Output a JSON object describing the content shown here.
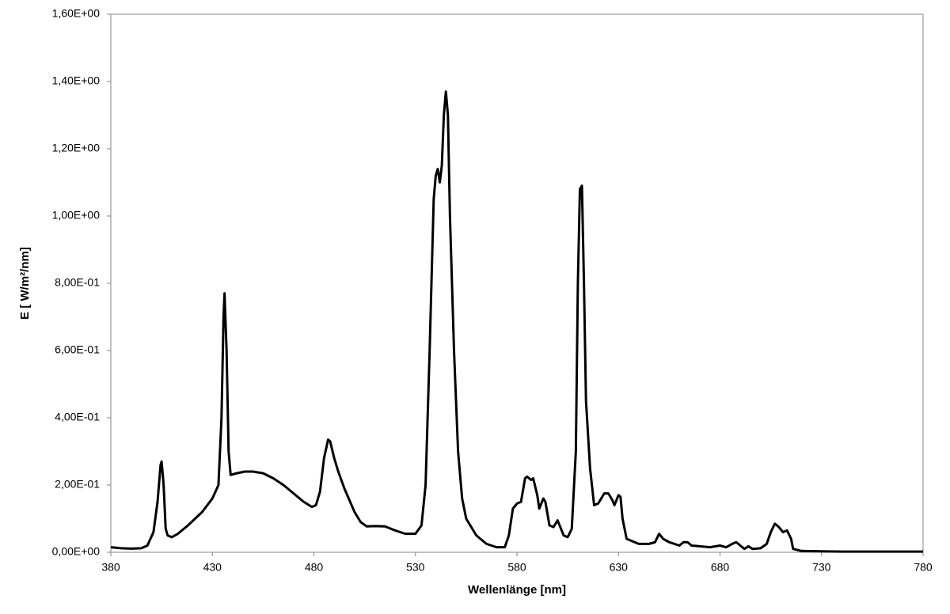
{
  "chart_data": {
    "type": "line",
    "x_label": "Wellenlänge [nm]",
    "y_label": "E [ W/m²/nm]",
    "xlim": [
      380,
      780
    ],
    "xticks": [
      380,
      430,
      480,
      530,
      580,
      630,
      680,
      730,
      780
    ],
    "ylim": [
      0,
      1.6
    ],
    "yticks": [
      {
        "value": 0,
        "label": "0,00E+00"
      },
      {
        "value": 0.2,
        "label": "2,00E-01"
      },
      {
        "value": 0.4,
        "label": "4,00E-01"
      },
      {
        "value": 0.6,
        "label": "6,00E-01"
      },
      {
        "value": 0.8,
        "label": "8,00E-01"
      },
      {
        "value": 1.0,
        "label": "1,00E+00"
      },
      {
        "value": 1.2,
        "label": "1,20E+00"
      },
      {
        "value": 1.4,
        "label": "1,40E+00"
      },
      {
        "value": 1.6,
        "label": "1,60E+00"
      }
    ],
    "grid": false,
    "x": [
      380,
      385,
      390,
      395,
      398,
      401,
      403,
      404.5,
      405,
      406,
      407,
      408,
      410,
      413,
      418,
      425,
      430,
      433,
      434.5,
      435.5,
      436,
      437,
      438,
      439,
      442,
      446,
      450,
      455,
      460,
      465,
      470,
      475,
      479,
      481,
      483,
      485,
      487,
      488,
      490,
      492,
      495,
      500,
      503,
      506,
      510,
      515,
      520,
      525,
      530,
      533,
      535,
      537,
      539,
      540,
      541,
      542,
      543,
      544,
      545,
      546,
      547,
      549,
      551,
      553,
      555,
      560,
      565,
      570,
      574,
      576,
      578,
      580,
      582,
      584,
      585,
      587,
      588,
      590,
      591,
      593,
      594,
      596,
      598,
      600,
      601,
      603,
      605,
      607,
      609,
      610,
      611,
      612,
      613,
      614,
      616,
      618,
      620,
      623,
      625,
      627,
      628,
      630,
      631,
      632,
      634,
      640,
      645,
      648,
      650,
      652,
      655,
      660,
      662,
      664,
      666,
      670,
      675,
      680,
      683,
      686,
      688,
      690,
      692,
      694,
      696,
      700,
      703,
      705,
      707,
      709,
      711,
      713,
      715,
      716,
      720,
      730,
      740,
      760,
      780
    ],
    "series": [
      {
        "color": "#000000",
        "values": [
          0.015,
          0.012,
          0.011,
          0.012,
          0.02,
          0.06,
          0.15,
          0.26,
          0.27,
          0.2,
          0.07,
          0.05,
          0.045,
          0.055,
          0.08,
          0.12,
          0.16,
          0.2,
          0.4,
          0.7,
          0.77,
          0.6,
          0.3,
          0.23,
          0.235,
          0.24,
          0.24,
          0.235,
          0.22,
          0.2,
          0.175,
          0.15,
          0.135,
          0.14,
          0.18,
          0.28,
          0.335,
          0.33,
          0.28,
          0.24,
          0.19,
          0.12,
          0.09,
          0.077,
          0.078,
          0.077,
          0.065,
          0.055,
          0.055,
          0.08,
          0.2,
          0.6,
          1.05,
          1.12,
          1.14,
          1.1,
          1.15,
          1.3,
          1.37,
          1.3,
          1.0,
          0.6,
          0.3,
          0.16,
          0.1,
          0.05,
          0.025,
          0.015,
          0.015,
          0.05,
          0.13,
          0.145,
          0.15,
          0.22,
          0.225,
          0.215,
          0.22,
          0.17,
          0.13,
          0.16,
          0.15,
          0.08,
          0.075,
          0.095,
          0.08,
          0.05,
          0.045,
          0.07,
          0.3,
          0.8,
          1.08,
          1.09,
          0.8,
          0.45,
          0.25,
          0.14,
          0.145,
          0.175,
          0.175,
          0.155,
          0.14,
          0.17,
          0.165,
          0.1,
          0.04,
          0.025,
          0.025,
          0.03,
          0.055,
          0.04,
          0.03,
          0.02,
          0.03,
          0.03,
          0.02,
          0.018,
          0.015,
          0.02,
          0.015,
          0.025,
          0.03,
          0.02,
          0.01,
          0.018,
          0.01,
          0.012,
          0.025,
          0.06,
          0.085,
          0.075,
          0.06,
          0.065,
          0.04,
          0.01,
          0.004,
          0.003,
          0.002,
          0.002,
          0.002
        ]
      }
    ]
  }
}
